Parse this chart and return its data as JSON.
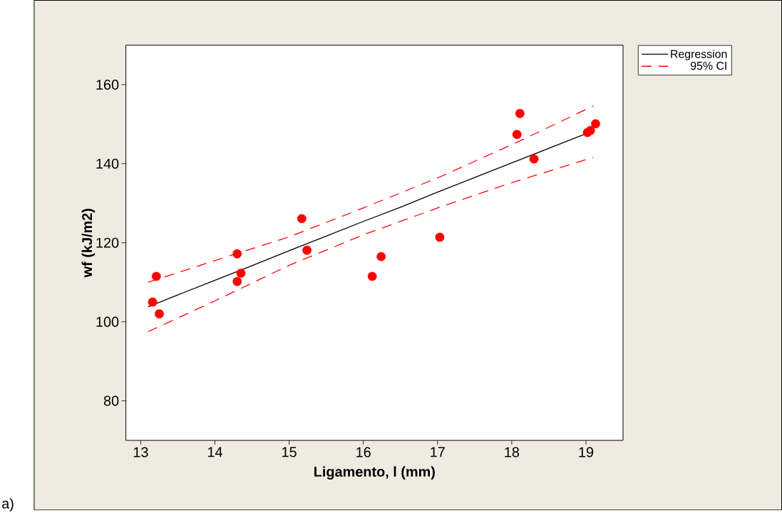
{
  "chart_data": {
    "type": "scatter",
    "xlabel": "Ligamento, l (mm)",
    "ylabel": "wf (kJ/m2)",
    "annotations": [
      "a)"
    ],
    "xlim": [
      12.8,
      19.5
    ],
    "ylim": [
      70,
      170
    ],
    "xticks": [
      13,
      14,
      15,
      16,
      17,
      18,
      19
    ],
    "yticks": [
      80,
      100,
      120,
      140,
      160
    ],
    "legend": "right",
    "series": [
      {
        "marker": "circle",
        "color": "#ff0000",
        "x": [
          13.16,
          13.21,
          13.25,
          14.3,
          14.35,
          14.3,
          15.17,
          15.24,
          16.24,
          16.12,
          17.03,
          18.11,
          18.07,
          18.3,
          19.02,
          19.06,
          19.13
        ],
        "values": [
          105.0,
          111.5,
          102.0,
          117.2,
          112.3,
          110.2,
          126.1,
          118.1,
          116.5,
          111.5,
          121.4,
          152.7,
          147.4,
          141.2,
          147.9,
          148.4,
          150.1
        ]
      },
      {
        "type": "line",
        "name": "Regression",
        "color": "#000000",
        "line_style": "solid",
        "x": [
          13.1,
          13.5,
          14.0,
          14.5,
          15.0,
          15.5,
          16.0,
          16.5,
          17.0,
          17.5,
          18.0,
          18.5,
          19.1
        ],
        "values": [
          103.8,
          106.8,
          110.5,
          114.2,
          118.0,
          121.7,
          125.4,
          129.0,
          132.8,
          136.5,
          140.2,
          143.9,
          148.3
        ]
      },
      {
        "type": "line",
        "name": "95% CI",
        "color": "#ff0000",
        "line_style": "dashed",
        "x": [
          13.1,
          14.0,
          15.0,
          16.0,
          17.0,
          18.0,
          19.1
        ],
        "values": [
          110.0,
          115.5,
          121.5,
          128.8,
          136.4,
          144.8,
          154.6
        ]
      },
      {
        "type": "line",
        "color": "#ff0000",
        "line_style": "dashed",
        "x": [
          13.1,
          14.0,
          15.0,
          16.0,
          17.0,
          18.0,
          19.1
        ],
        "values": [
          97.5,
          105.3,
          114.3,
          122.0,
          128.8,
          135.2,
          141.6
        ]
      }
    ]
  }
}
